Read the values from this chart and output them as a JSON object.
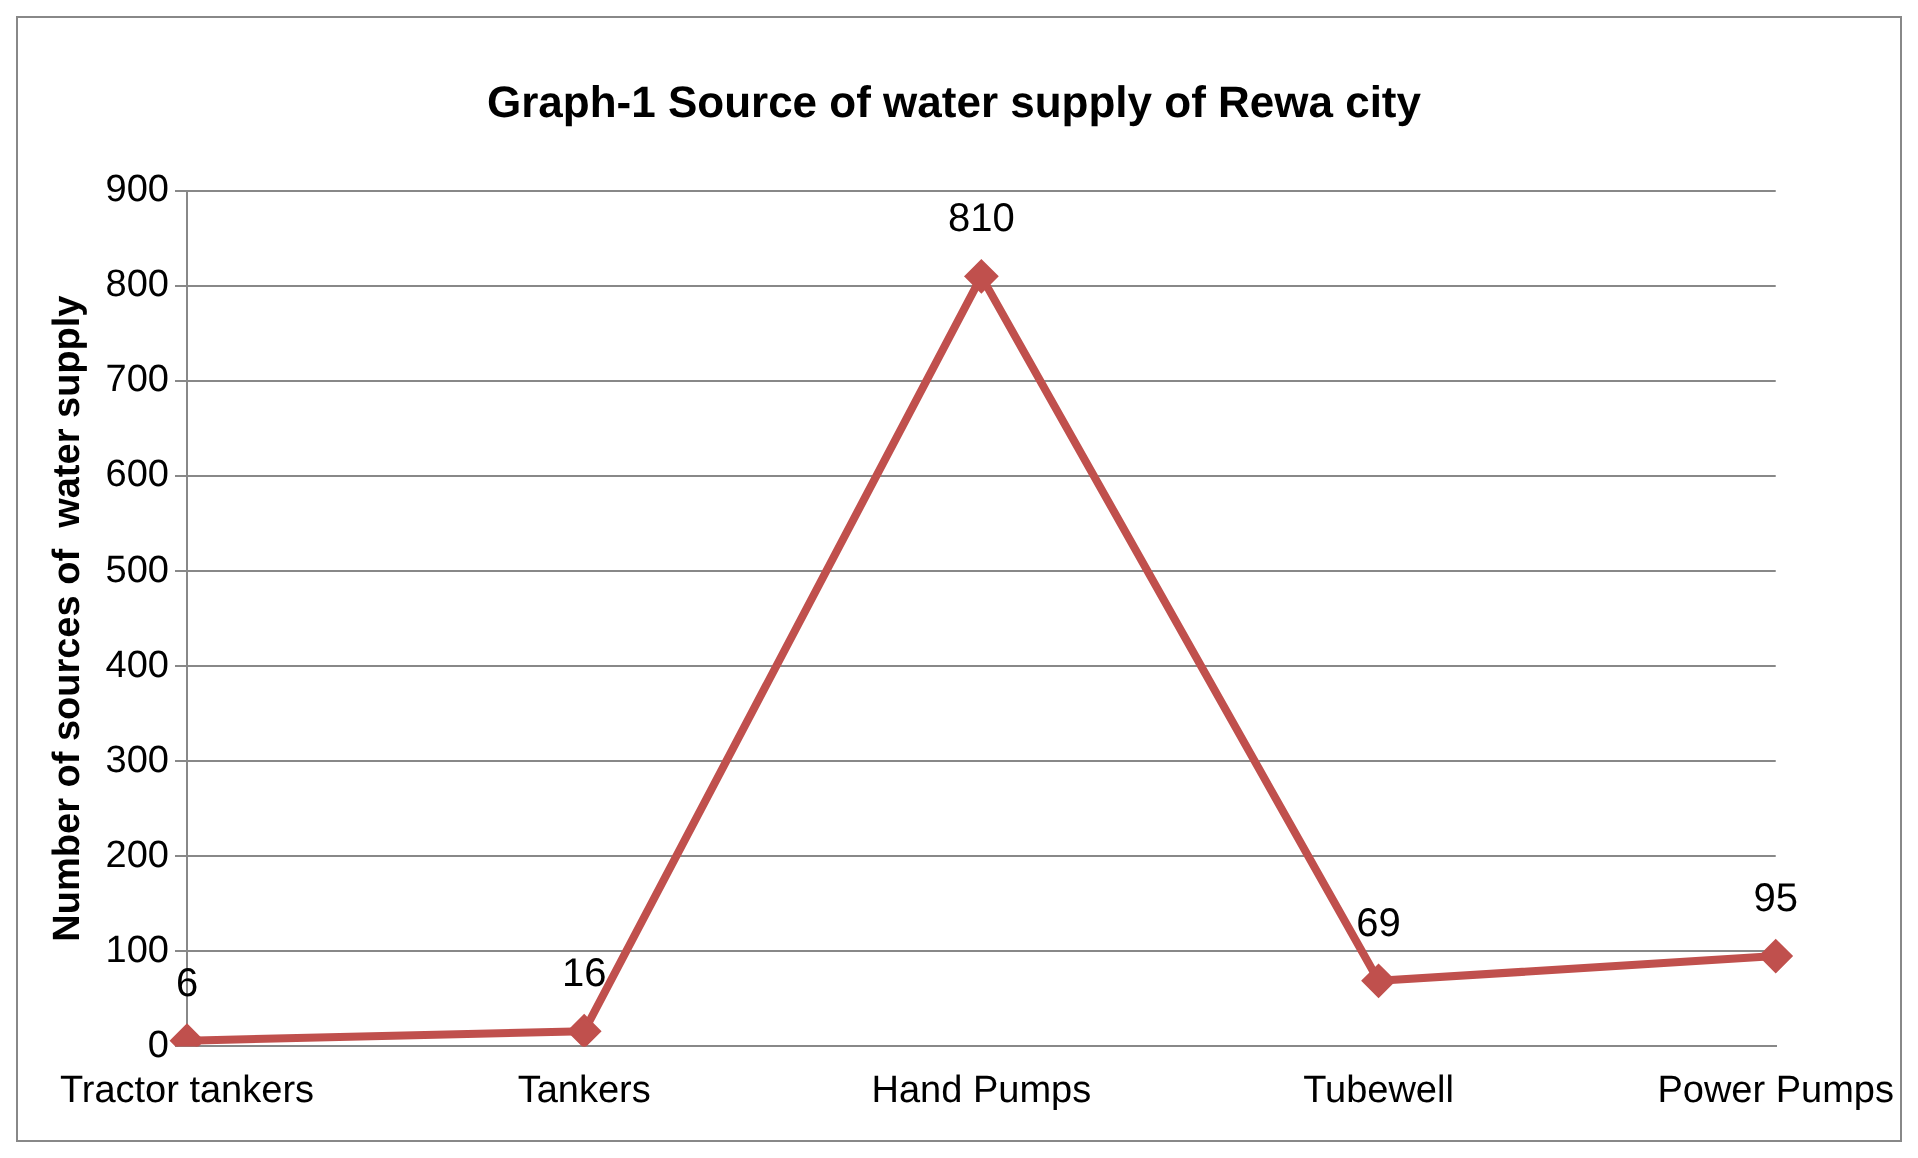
{
  "chart_data": {
    "type": "line",
    "title": "Graph-1 Source of water supply of Rewa city",
    "ylabel": "Number of sources of  water supply",
    "categories": [
      "Tractor tankers",
      "Tankers",
      "Hand Pumps",
      "Tubewell",
      "Power Pumps"
    ],
    "series": [
      {
        "color": "#c0504d",
        "values": [
          6,
          16,
          810,
          69,
          95
        ]
      }
    ],
    "ylim": [
      0,
      900
    ],
    "yticks": [
      0,
      100,
      200,
      300,
      400,
      500,
      600,
      700,
      800,
      900
    ],
    "grid": "y",
    "legend": false,
    "marker": "diamond",
    "line_style": "solid",
    "data_labels": true
  }
}
